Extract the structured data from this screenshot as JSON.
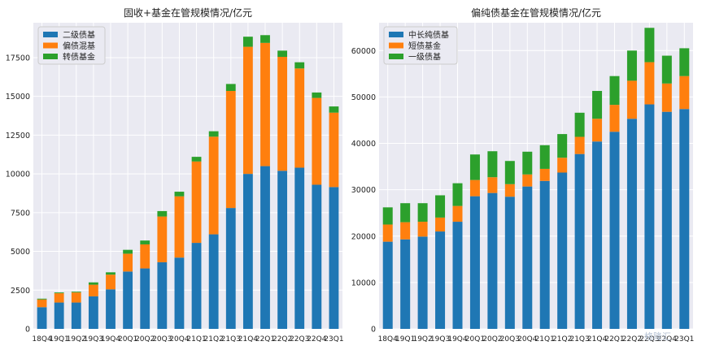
{
  "colors": {
    "blue": "#1f77b4",
    "orange": "#ff7f0e",
    "green": "#2ca02c",
    "plot_bg": "#eaeaf2",
    "grid": "#ffffff"
  },
  "watermark": "格隆汇",
  "chart_data": [
    {
      "type": "bar",
      "stacked": true,
      "title": "固收+基金在管规模情况/亿元",
      "categories": [
        "18Q4",
        "19Q1",
        "19Q2",
        "19Q3",
        "19Q4",
        "20Q1",
        "20Q2",
        "20Q3",
        "20Q4",
        "21Q1",
        "21Q2",
        "21Q3",
        "21Q4",
        "22Q1",
        "22Q2",
        "22Q3",
        "22Q4",
        "23Q1"
      ],
      "series": [
        {
          "name": "二级债基",
          "color": "blue",
          "values": [
            1400,
            1700,
            1700,
            2100,
            2550,
            3700,
            3900,
            4300,
            4600,
            5550,
            6100,
            7800,
            10000,
            10500,
            10200,
            10400,
            9300,
            9150
          ]
        },
        {
          "name": "偏债混基",
          "color": "orange",
          "values": [
            500,
            600,
            650,
            750,
            950,
            1150,
            1550,
            2950,
            3950,
            5250,
            6300,
            7550,
            8200,
            7950,
            7350,
            6400,
            5600,
            4800
          ]
        },
        {
          "name": "转债基金",
          "color": "green",
          "values": [
            50,
            50,
            50,
            150,
            150,
            250,
            250,
            350,
            300,
            300,
            350,
            450,
            650,
            500,
            400,
            400,
            350,
            400
          ]
        }
      ],
      "xlabel": "",
      "ylabel": "",
      "ylim": [
        0,
        19750
      ],
      "yticks": [
        0,
        2500,
        5000,
        7500,
        10000,
        12500,
        15000,
        17500
      ],
      "ytick_labels": [
        "0",
        "2500",
        "5000",
        "7500",
        "10000",
        "12500",
        "15000",
        "17500"
      ],
      "grid": true,
      "legend": "top-left"
    },
    {
      "type": "bar",
      "stacked": true,
      "title": "偏纯债基金在管规模情况/亿元",
      "categories": [
        "18Q4",
        "19Q1",
        "19Q2",
        "19Q3",
        "19Q4",
        "20Q1",
        "20Q2",
        "20Q3",
        "20Q4",
        "21Q1",
        "21Q2",
        "21Q3",
        "21Q4",
        "22Q1",
        "22Q2",
        "22Q3",
        "22Q4",
        "23Q1"
      ],
      "series": [
        {
          "name": "中长纯债基",
          "color": "blue",
          "values": [
            18800,
            19300,
            19900,
            21000,
            23100,
            28600,
            29300,
            28500,
            30700,
            31900,
            33700,
            37700,
            40400,
            42500,
            45300,
            48400,
            46800,
            47400
          ]
        },
        {
          "name": "短债基金",
          "color": "orange",
          "values": [
            3700,
            3700,
            3200,
            3000,
            3400,
            3500,
            3400,
            2700,
            2600,
            2600,
            3200,
            3700,
            4900,
            5800,
            8200,
            9100,
            6100,
            7100
          ]
        },
        {
          "name": "一级债基",
          "color": "green",
          "values": [
            3700,
            4100,
            4000,
            4800,
            4900,
            5500,
            5600,
            5000,
            4900,
            5100,
            5100,
            5200,
            6000,
            6200,
            6500,
            7400,
            6000,
            6000
          ]
        }
      ],
      "xlabel": "",
      "ylabel": "",
      "ylim": [
        0,
        66000
      ],
      "yticks": [
        0,
        10000,
        20000,
        30000,
        40000,
        50000,
        60000
      ],
      "ytick_labels": [
        "0",
        "10000",
        "20000",
        "30000",
        "40000",
        "50000",
        "60000"
      ],
      "grid": true,
      "legend": "top-left"
    }
  ]
}
